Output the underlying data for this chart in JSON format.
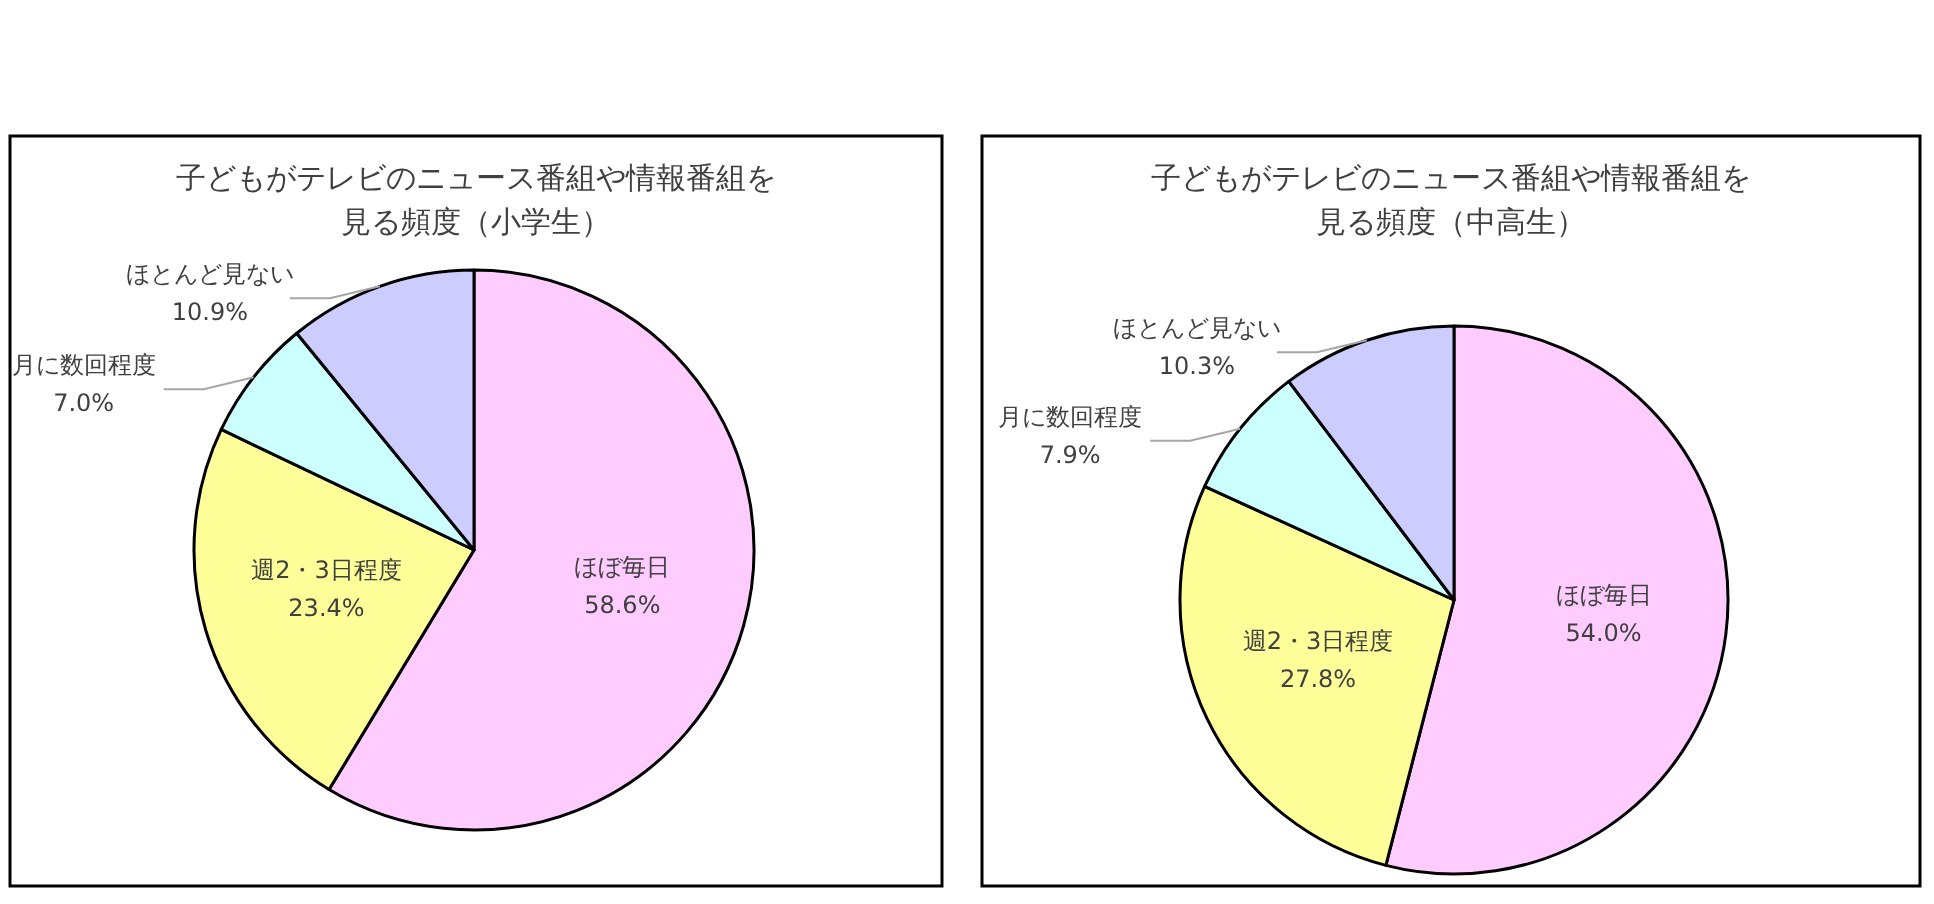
{
  "chart_data": [
    {
      "type": "pie",
      "title": "子どもがテレビのニュース番組や情報番組を見る頻度（小学生）",
      "categories": [
        "ほぼ毎日",
        "週2・3日程度",
        "月に数回程度",
        "ほとんど見ない"
      ],
      "values": [
        58.6,
        23.4,
        7.0,
        10.9
      ],
      "colors": [
        "#ffccff",
        "#ffff99",
        "#ccffff",
        "#ccccff"
      ],
      "value_labels": [
        "58.6%",
        "23.4%",
        "7.0%",
        "10.9%"
      ],
      "legend": false
    },
    {
      "type": "pie",
      "title": "子どもがテレビのニュース番組や情報番組を見る頻度（中高生）",
      "categories": [
        "ほぼ毎日",
        "週2・3日程度",
        "月に数回程度",
        "ほとんど見ない"
      ],
      "values": [
        54.0,
        27.8,
        7.9,
        10.3
      ],
      "colors": [
        "#ffccff",
        "#ffff99",
        "#ccffff",
        "#ccccff"
      ],
      "value_labels": [
        "54.0%",
        "27.8%",
        "7.9%",
        "10.3%"
      ],
      "legend": false
    }
  ]
}
